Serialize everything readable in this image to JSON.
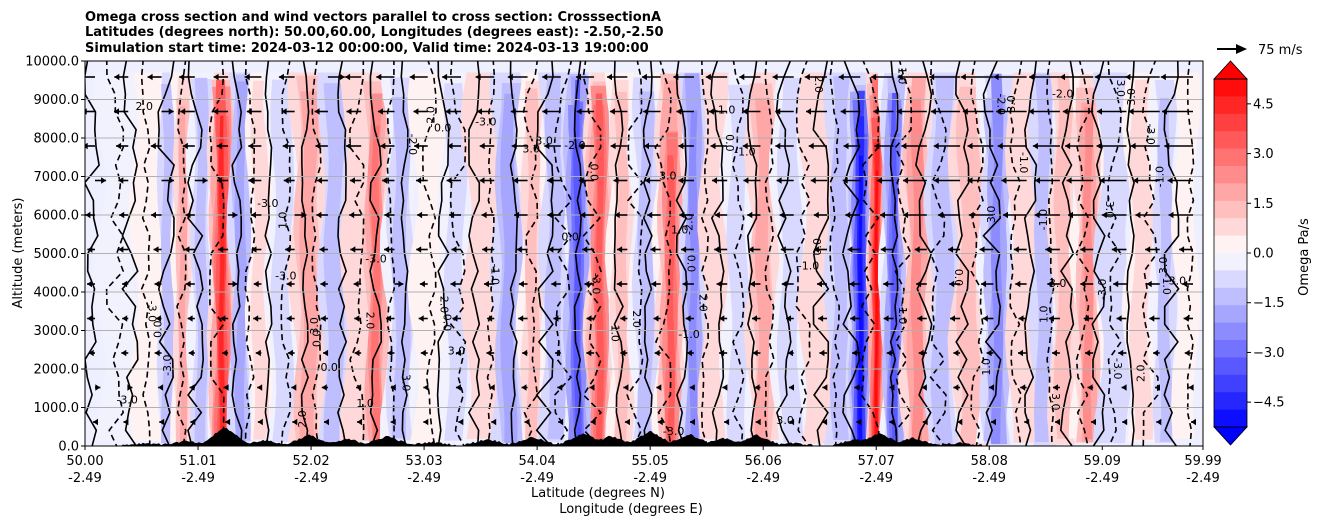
{
  "chart_data": {
    "type": "heatmap",
    "title_lines": [
      "Omega cross section and wind vectors parallel to cross section: CrosssectionA",
      "Latitudes (degrees north): 50.00,60.00, Longitudes (degrees east): -2.50,-2.50",
      "Simulation start time: 2024-03-12 00:00:00, Valid time: 2024-03-13 19:00:00"
    ],
    "ylabel": "Altitude (meters)",
    "xlabel_lat": "Latitude (degrees N)",
    "xlabel_lon": "Longitude (degrees E)",
    "ylim": [
      0,
      10000
    ],
    "yticks": [
      "0.0",
      "1000.0",
      "2000.0",
      "3000.0",
      "4000.0",
      "5000.0",
      "6000.0",
      "7000.0",
      "8000.0",
      "9000.0",
      "10000.0"
    ],
    "xlim": [
      50.0,
      59.99
    ],
    "xticks": [
      {
        "lat": "50.00",
        "lon": "-2.49",
        "value": 50.0
      },
      {
        "lat": "51.01",
        "lon": "-2.49",
        "value": 51.01
      },
      {
        "lat": "52.02",
        "lon": "-2.49",
        "value": 52.02
      },
      {
        "lat": "53.03",
        "lon": "-2.49",
        "value": 53.03
      },
      {
        "lat": "54.04",
        "lon": "-2.49",
        "value": 54.04
      },
      {
        "lat": "55.05",
        "lon": "-2.49",
        "value": 55.05
      },
      {
        "lat": "56.06",
        "lon": "-2.49",
        "value": 56.06
      },
      {
        "lat": "57.07",
        "lon": "-2.49",
        "value": 57.07
      },
      {
        "lat": "58.08",
        "lon": "-2.49",
        "value": 58.08
      },
      {
        "lat": "59.09",
        "lon": "-2.49",
        "value": 59.09
      },
      {
        "lat": "59.99",
        "lon": "-2.49",
        "value": 59.99
      }
    ],
    "colorbar": {
      "label": "Omega Pa/s",
      "range": [
        -5.25,
        5.25
      ],
      "ticks": [
        "4.5",
        "3.0",
        "1.5",
        "0.0",
        "−1.5",
        "−3.0",
        "−4.5"
      ],
      "tick_values": [
        4.5,
        3.0,
        1.5,
        0.0,
        -1.5,
        -3.0,
        -4.5
      ],
      "levels": 20,
      "cmap": "bwr",
      "extend": "both"
    },
    "quiver_key": "75 m/s",
    "contour_labels": [
      "0.0",
      "1.0",
      "2.0",
      "3.0",
      "-1.0",
      "-2.0",
      "-3.0"
    ],
    "omega_bands": [
      {
        "lat": 50.3,
        "value": -0.4
      },
      {
        "lat": 50.6,
        "value": 0.3
      },
      {
        "lat": 50.75,
        "value": -1.2
      },
      {
        "lat": 50.85,
        "value": 2.0
      },
      {
        "lat": 51.05,
        "value": -1.4
      },
      {
        "lat": 51.22,
        "value": 4.5
      },
      {
        "lat": 51.4,
        "value": -1.8
      },
      {
        "lat": 51.55,
        "value": 0.9
      },
      {
        "lat": 51.75,
        "value": -1.0
      },
      {
        "lat": 52.0,
        "value": 1.8
      },
      {
        "lat": 52.25,
        "value": -1.3
      },
      {
        "lat": 52.4,
        "value": 0.6
      },
      {
        "lat": 52.6,
        "value": 2.8
      },
      {
        "lat": 52.8,
        "value": -1.5
      },
      {
        "lat": 53.1,
        "value": 0.4
      },
      {
        "lat": 53.3,
        "value": -0.9
      },
      {
        "lat": 53.55,
        "value": 0.7
      },
      {
        "lat": 53.8,
        "value": -1.6
      },
      {
        "lat": 54.0,
        "value": 1.5
      },
      {
        "lat": 54.2,
        "value": -1.1
      },
      {
        "lat": 54.4,
        "value": -3.2
      },
      {
        "lat": 54.6,
        "value": 3.3
      },
      {
        "lat": 54.8,
        "value": 1.5
      },
      {
        "lat": 55.0,
        "value": -1.4
      },
      {
        "lat": 55.25,
        "value": 3.6
      },
      {
        "lat": 55.45,
        "value": -2.2
      },
      {
        "lat": 55.6,
        "value": 0.8
      },
      {
        "lat": 55.85,
        "value": -1.0
      },
      {
        "lat": 56.05,
        "value": 1.8
      },
      {
        "lat": 56.3,
        "value": -0.9
      },
      {
        "lat": 56.55,
        "value": 0.8
      },
      {
        "lat": 56.75,
        "value": -1.2
      },
      {
        "lat": 56.95,
        "value": -5.2
      },
      {
        "lat": 57.07,
        "value": 4.8
      },
      {
        "lat": 57.2,
        "value": -3.6
      },
      {
        "lat": 57.45,
        "value": 2.2
      },
      {
        "lat": 57.65,
        "value": -1.2
      },
      {
        "lat": 57.9,
        "value": 1.2
      },
      {
        "lat": 58.15,
        "value": -2.6
      },
      {
        "lat": 58.4,
        "value": 0.6
      },
      {
        "lat": 58.55,
        "value": -1.2
      },
      {
        "lat": 58.75,
        "value": 1.1
      },
      {
        "lat": 58.95,
        "value": 2.5
      },
      {
        "lat": 59.2,
        "value": -0.8
      },
      {
        "lat": 59.45,
        "value": 1.0
      },
      {
        "lat": 59.65,
        "value": -1.5
      },
      {
        "lat": 59.85,
        "value": 0.4
      }
    ],
    "colors": {
      "positive": "#ff0000",
      "negative": "#0000ff",
      "neutral": "#ffffff",
      "line": "#000000",
      "grid": "#b0b0b0"
    }
  }
}
